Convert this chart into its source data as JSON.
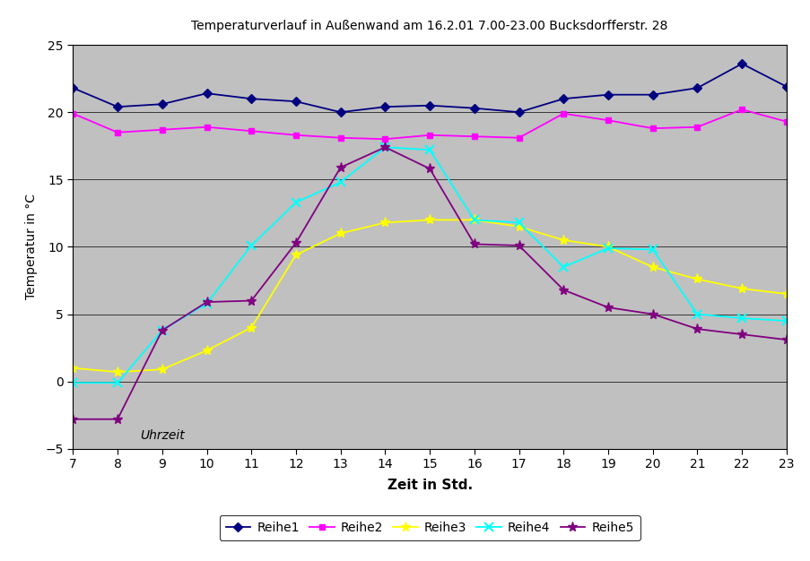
{
  "title": "Temperaturverlauf in Außenwand am 16.2.01 7.00-23.00 Bucksdorfferstr. 28",
  "xlabel": "Zeit in Std.",
  "ylabel": "Temperatur in °C",
  "x_label_secondary": "Uhrzeit",
  "x": [
    7,
    8,
    9,
    10,
    11,
    12,
    13,
    14,
    15,
    16,
    17,
    18,
    19,
    20,
    21,
    22,
    23
  ],
  "Reihe1": [
    21.8,
    20.4,
    20.6,
    21.4,
    21.0,
    20.8,
    20.0,
    20.4,
    20.5,
    20.3,
    20.0,
    21.0,
    21.3,
    21.3,
    21.8,
    23.6,
    21.9
  ],
  "Reihe2": [
    19.9,
    18.5,
    18.7,
    18.9,
    18.6,
    18.3,
    18.1,
    18.0,
    18.3,
    18.2,
    18.1,
    19.9,
    19.4,
    18.8,
    18.9,
    20.2,
    19.3
  ],
  "Reihe3": [
    1.0,
    0.7,
    0.9,
    2.3,
    4.0,
    9.4,
    11.0,
    11.8,
    12.0,
    12.0,
    11.5,
    10.5,
    10.0,
    8.5,
    7.6,
    6.9,
    6.5
  ],
  "Reihe4": [
    -0.1,
    -0.1,
    3.8,
    5.8,
    10.1,
    13.3,
    14.8,
    17.4,
    17.2,
    12.0,
    11.8,
    8.5,
    9.9,
    9.8,
    5.0,
    4.7,
    4.5
  ],
  "Reihe5": [
    -2.8,
    -2.8,
    3.8,
    5.9,
    6.0,
    10.3,
    15.9,
    17.4,
    15.8,
    10.2,
    10.1,
    6.8,
    5.5,
    5.0,
    3.9,
    3.5,
    3.1
  ],
  "color1": "#000080",
  "color2": "#FF00FF",
  "color3": "#FFFF00",
  "color4": "#00FFFF",
  "color5": "#800080",
  "ylim": [
    -5,
    25
  ],
  "yticks": [
    -5,
    0,
    5,
    10,
    15,
    20,
    25
  ],
  "plot_bg": "#C0C0C0",
  "fig_bg": "#FFFFFF",
  "legend_labels": [
    "Reihe1",
    "Reihe2",
    "Reihe3",
    "Reihe4",
    "Reihe5"
  ]
}
